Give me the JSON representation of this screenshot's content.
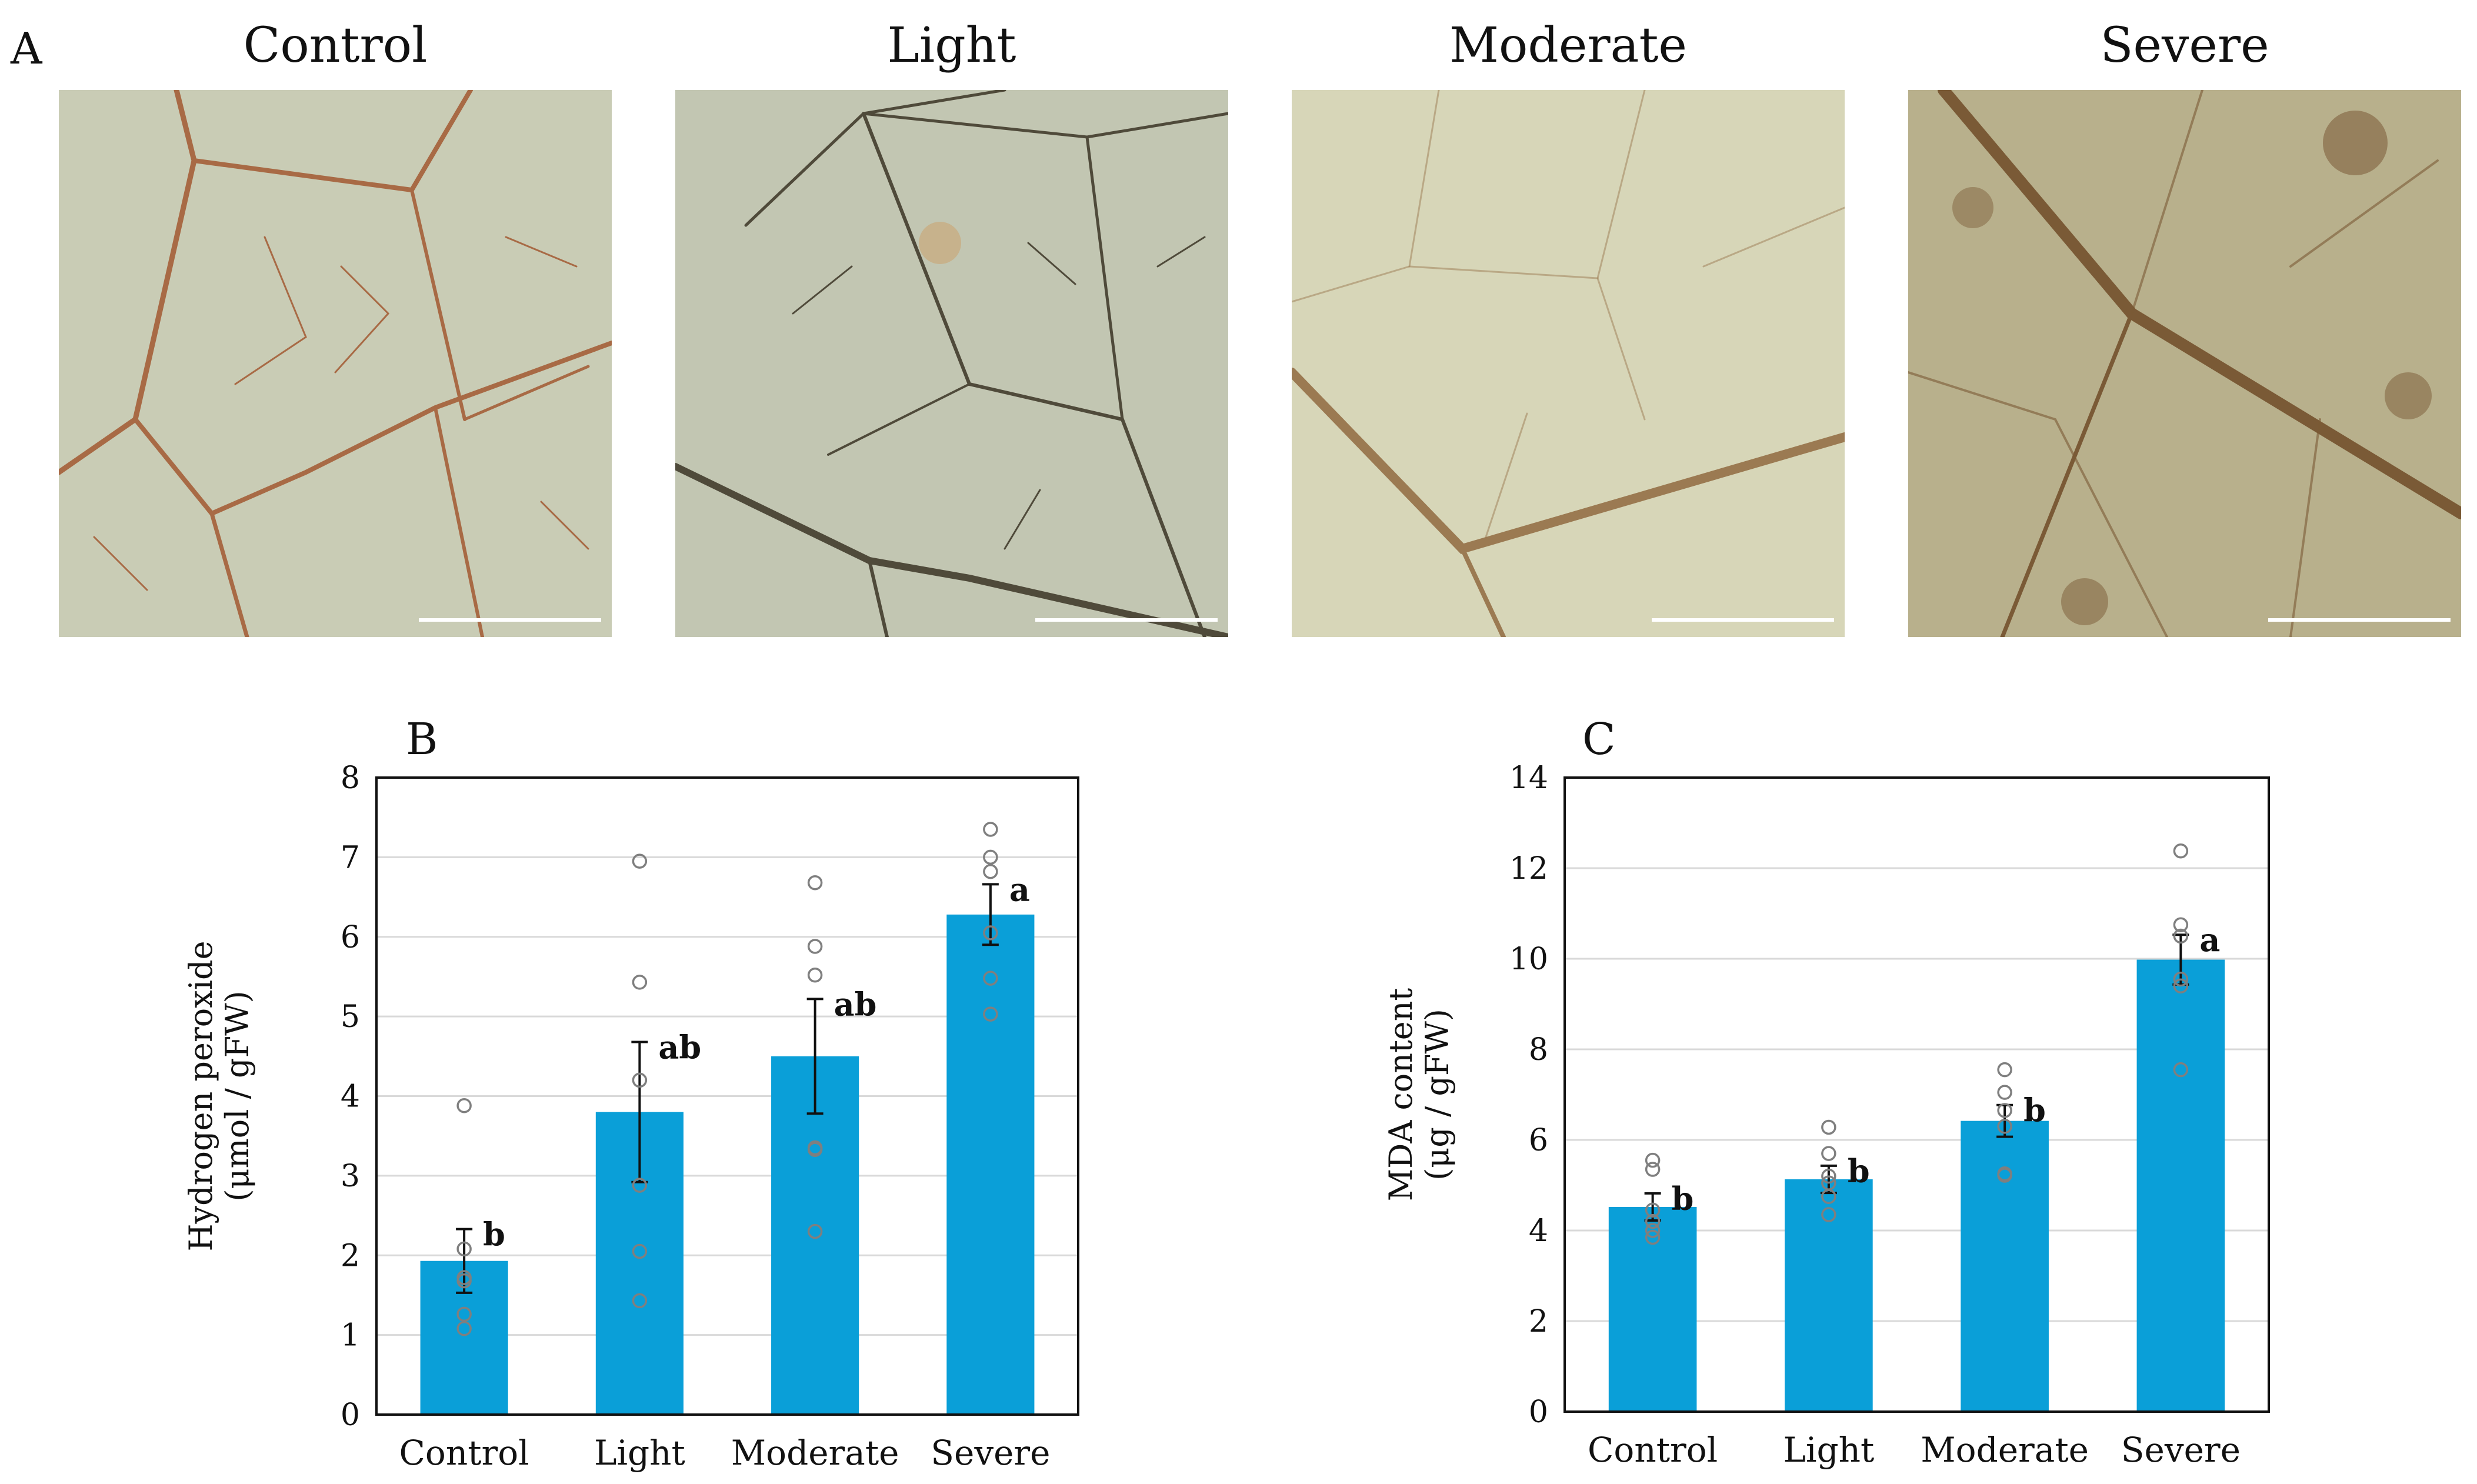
{
  "panel_a": {
    "letter": "A",
    "images": [
      {
        "title": "Control",
        "bg": "#c9ccb5",
        "vein": "#a86a45"
      },
      {
        "title": "Light",
        "bg": "#c2c6b2",
        "vein": "#4f4a3a"
      },
      {
        "title": "Moderate",
        "bg": "#d7d6b8",
        "vein": "#9b7a52"
      },
      {
        "title": "Severe",
        "bg": "#b8b08c",
        "vein": "#7a5a36"
      }
    ]
  },
  "chart_data": [
    {
      "panel": "B",
      "type": "bar",
      "categories": [
        "Control",
        "Light",
        "Moderate",
        "Severe"
      ],
      "values": [
        1.93,
        3.8,
        4.5,
        6.28
      ],
      "errors": [
        0.4,
        0.88,
        0.72,
        0.38
      ],
      "letters": [
        "b",
        "ab",
        "ab",
        "a"
      ],
      "points": [
        [
          1.08,
          1.26,
          1.68,
          1.72,
          2.08,
          3.88
        ],
        [
          1.43,
          2.05,
          2.88,
          4.2,
          5.43,
          6.95
        ],
        [
          2.3,
          3.33,
          3.35,
          5.52,
          5.88,
          6.68
        ],
        [
          5.03,
          5.48,
          6.05,
          6.82,
          7.0,
          7.35
        ]
      ],
      "ylabel_line1": "Hydrogen peroxide",
      "ylabel_line2": "(μmol / gFW)",
      "ylim": [
        0,
        8
      ],
      "yticks": [
        0,
        1,
        2,
        3,
        4,
        5,
        6,
        7,
        8
      ],
      "bar_color": "#0a9fd8"
    },
    {
      "panel": "C",
      "type": "bar",
      "categories": [
        "Control",
        "Light",
        "Moderate",
        "Severe"
      ],
      "values": [
        4.52,
        5.13,
        6.42,
        9.98
      ],
      "errors": [
        0.3,
        0.3,
        0.35,
        0.55
      ],
      "letters": [
        "b",
        "b",
        "b",
        "a"
      ],
      "points": [
        [
          3.85,
          4.0,
          4.2,
          4.45,
          5.35,
          5.55
        ],
        [
          4.35,
          4.75,
          5.05,
          5.2,
          5.7,
          6.28
        ],
        [
          5.22,
          5.25,
          6.3,
          6.65,
          7.05,
          7.55
        ],
        [
          7.55,
          9.4,
          9.55,
          10.5,
          10.75,
          12.38
        ]
      ],
      "ylabel_line1": "MDA content",
      "ylabel_line2": "(μg / gFW)",
      "ylim": [
        0,
        14
      ],
      "yticks": [
        0,
        2,
        4,
        6,
        8,
        10,
        12,
        14
      ],
      "bar_color": "#0a9fd8"
    }
  ]
}
